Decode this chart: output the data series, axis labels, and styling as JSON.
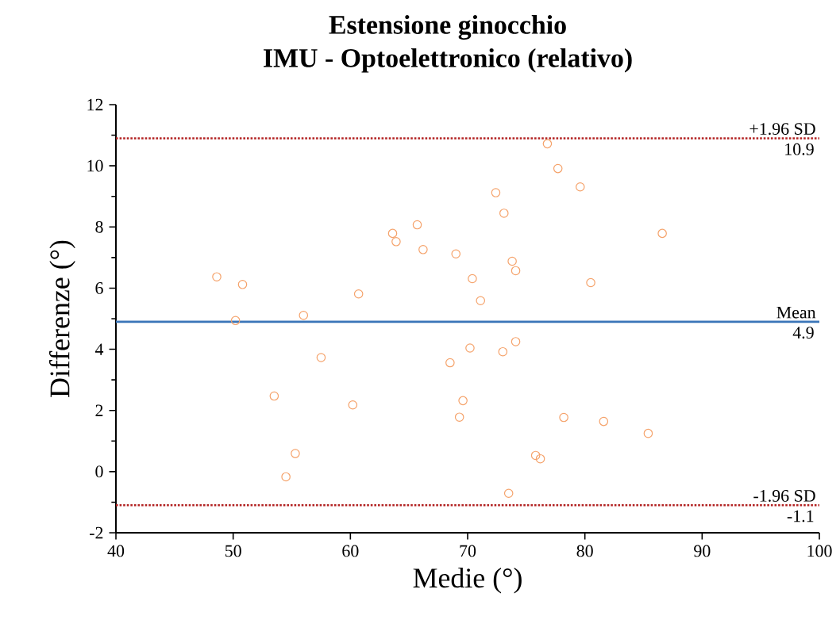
{
  "chart_data": {
    "type": "scatter",
    "title": "Estensione ginocchio",
    "subtitle": "IMU - Optoelettronico (relativo)",
    "xlabel": "Medie (°)",
    "ylabel": "Differenze (°)",
    "marker": "circle",
    "series": [
      {
        "color": "#f5a26a",
        "x": [
          48.6,
          50.8,
          50.2,
          56.0,
          57.5,
          53.5,
          60.2,
          60.7,
          55.3,
          54.5,
          63.6,
          63.9,
          65.7,
          66.2,
          69.0,
          68.5,
          69.6,
          69.3,
          76.8,
          77.7,
          72.4,
          79.6,
          73.1,
          86.6,
          73.8,
          74.1,
          70.4,
          80.5,
          71.1,
          70.2,
          74.1,
          73.0,
          78.2,
          81.6,
          85.4,
          75.8,
          76.2,
          73.5
        ],
        "values": [
          6.37,
          6.12,
          4.94,
          5.11,
          3.73,
          2.47,
          2.18,
          5.81,
          0.59,
          -0.17,
          7.79,
          7.52,
          8.07,
          7.26,
          7.12,
          3.56,
          2.32,
          1.78,
          10.72,
          9.91,
          9.12,
          9.31,
          8.45,
          7.79,
          6.88,
          6.57,
          6.31,
          6.18,
          5.59,
          4.04,
          4.25,
          3.92,
          1.77,
          1.64,
          1.25,
          0.53,
          0.42,
          -0.71
        ]
      }
    ],
    "xlim": [
      40,
      100
    ],
    "ylim": [
      -2,
      12
    ],
    "xticks": [
      40,
      50,
      60,
      70,
      80,
      90,
      100
    ],
    "yticks": [
      -2,
      0,
      2,
      4,
      6,
      8,
      10,
      12
    ],
    "ref_lines": [
      {
        "axis": "y",
        "value": 10.9,
        "label": "+1.96 SD",
        "color": "#b22222",
        "line_style": "dotted"
      },
      {
        "axis": "y",
        "value": 4.9,
        "label": "Mean",
        "color": "#3a75b8",
        "line_style": "solid"
      },
      {
        "axis": "y",
        "value": -1.1,
        "label": "-1.96 SD",
        "color": "#b22222",
        "line_style": "dotted"
      }
    ],
    "annotations": [
      {
        "text": "10.9",
        "y": 10.9
      },
      {
        "text": "4.9",
        "y": 4.9
      },
      {
        "text": "-1.1",
        "y": -1.1
      }
    ]
  }
}
